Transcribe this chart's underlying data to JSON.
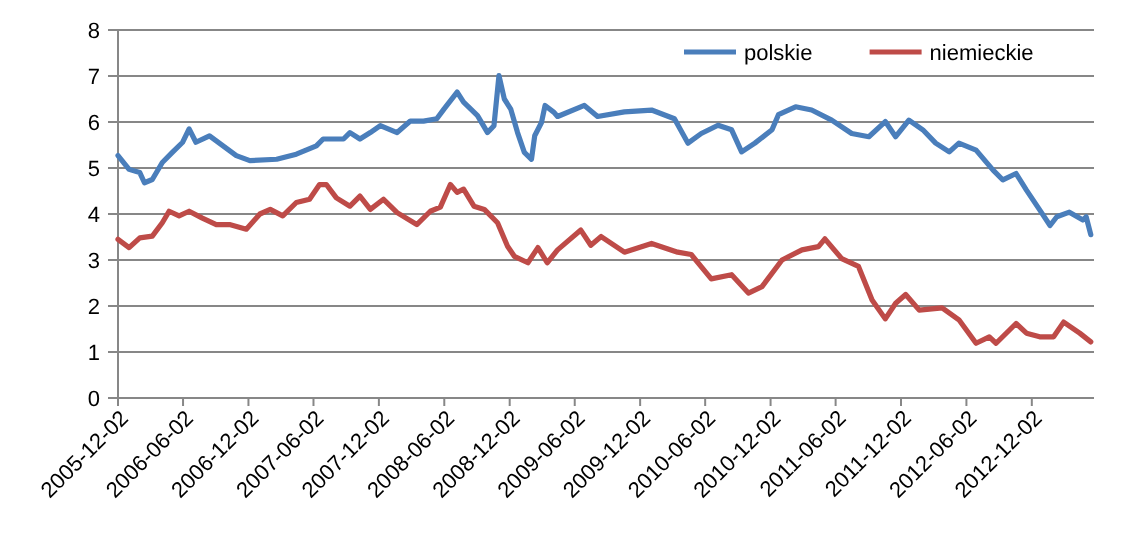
{
  "chart_data": {
    "type": "line",
    "xlim": [
      "2005-12-02",
      "2013-05-25"
    ],
    "ylim": [
      0,
      8
    ],
    "yticks": [
      0,
      1,
      2,
      3,
      4,
      5,
      6,
      7,
      8
    ],
    "xticks": [
      "2005-12-02",
      "2006-06-02",
      "2006-12-02",
      "2007-06-02",
      "2007-12-02",
      "2008-06-02",
      "2008-12-02",
      "2009-06-02",
      "2009-12-02",
      "2010-06-02",
      "2010-12-02",
      "2011-06-02",
      "2011-12-02",
      "2012-06-02",
      "2012-12-02"
    ],
    "grid": "y",
    "legend": "top right",
    "marker": "none",
    "line_style": "solid",
    "series": [
      {
        "name": "polskie",
        "color": "#4a7ebb",
        "x": [
          "2005-12-02",
          "2006-01-02",
          "2006-02-01",
          "2006-02-14",
          "2006-03-08",
          "2006-04-05",
          "2006-05-03",
          "2006-06-01",
          "2006-06-19",
          "2006-07-08",
          "2006-08-15",
          "2006-09-22",
          "2006-10-29",
          "2006-12-06",
          "2007-02-19",
          "2007-04-15",
          "2007-06-10",
          "2007-06-29",
          "2007-08-25",
          "2007-09-12",
          "2007-10-10",
          "2007-11-08",
          "2007-12-06",
          "2008-01-22",
          "2008-02-28",
          "2008-04-05",
          "2008-05-12",
          "2008-06-01",
          "2008-07-08",
          "2008-07-26",
          "2008-09-03",
          "2008-10-01",
          "2008-10-19",
          "2008-11-02",
          "2008-11-17",
          "2008-12-05",
          "2008-12-24",
          "2009-01-12",
          "2009-02-01",
          "2009-02-10",
          "2009-03-01",
          "2009-03-11",
          "2009-04-05",
          "2009-04-15",
          "2009-06-29",
          "2009-08-05",
          "2009-10-19",
          "2010-01-03",
          "2010-03-08",
          "2010-04-15",
          "2010-05-22",
          "2010-07-08",
          "2010-08-15",
          "2010-09-12",
          "2010-10-19",
          "2010-12-06",
          "2010-12-24",
          "2011-02-10",
          "2011-03-27",
          "2011-05-22",
          "2011-07-17",
          "2011-09-03",
          "2011-10-19",
          "2011-11-17",
          "2011-12-24",
          "2012-02-01",
          "2012-03-08",
          "2012-04-15",
          "2012-05-12",
          "2012-06-29",
          "2012-08-15",
          "2012-09-12",
          "2012-10-19",
          "2012-11-17",
          "2012-12-24",
          "2013-01-22",
          "2013-02-10",
          "2013-03-17",
          "2013-04-24",
          "2013-05-03",
          "2013-05-16"
        ],
        "values": [
          5.27,
          4.97,
          4.9,
          4.68,
          4.75,
          5.12,
          5.34,
          5.56,
          5.85,
          5.56,
          5.7,
          5.48,
          5.27,
          5.16,
          5.19,
          5.3,
          5.48,
          5.63,
          5.63,
          5.77,
          5.63,
          5.77,
          5.92,
          5.77,
          6.02,
          6.02,
          6.07,
          6.28,
          6.65,
          6.43,
          6.14,
          5.77,
          5.92,
          7.01,
          6.5,
          6.28,
          5.77,
          5.34,
          5.19,
          5.7,
          5.99,
          6.36,
          6.21,
          6.12,
          6.36,
          6.12,
          6.22,
          6.26,
          6.07,
          5.54,
          5.75,
          5.93,
          5.83,
          5.35,
          5.54,
          5.83,
          6.16,
          6.33,
          6.26,
          6.04,
          5.75,
          5.68,
          6.01,
          5.68,
          6.04,
          5.83,
          5.54,
          5.35,
          5.54,
          5.39,
          4.96,
          4.74,
          4.88,
          4.52,
          4.09,
          3.75,
          3.94,
          4.04,
          3.87,
          3.94,
          3.55
        ]
      },
      {
        "name": "niemieckie",
        "color": "#be4b48",
        "x": [
          "2005-12-02",
          "2006-01-02",
          "2006-02-01",
          "2006-03-08",
          "2006-04-05",
          "2006-04-24",
          "2006-05-22",
          "2006-06-19",
          "2006-07-26",
          "2006-09-03",
          "2006-10-10",
          "2006-11-26",
          "2007-01-03",
          "2007-02-01",
          "2007-03-08",
          "2007-04-15",
          "2007-05-22",
          "2007-06-19",
          "2007-07-08",
          "2007-08-05",
          "2007-09-12",
          "2007-10-10",
          "2007-11-08",
          "2007-12-15",
          "2008-01-22",
          "2008-03-17",
          "2008-04-24",
          "2008-05-22",
          "2008-06-19",
          "2008-07-08",
          "2008-07-26",
          "2008-08-24",
          "2008-09-22",
          "2008-10-29",
          "2008-11-26",
          "2008-12-15",
          "2009-01-22",
          "2009-02-19",
          "2009-03-17",
          "2009-04-15",
          "2009-06-19",
          "2009-07-17",
          "2009-08-15",
          "2009-10-19",
          "2010-01-03",
          "2010-03-17",
          "2010-04-24",
          "2010-06-19",
          "2010-08-15",
          "2010-10-01",
          "2010-11-08",
          "2011-01-03",
          "2011-02-28",
          "2011-04-15",
          "2011-05-03",
          "2011-06-19",
          "2011-08-05",
          "2011-09-12",
          "2011-10-19",
          "2011-11-17",
          "2011-12-15",
          "2012-01-22",
          "2012-03-26",
          "2012-05-12",
          "2012-06-29",
          "2012-08-05",
          "2012-08-24",
          "2012-10-19",
          "2012-11-17",
          "2012-12-24",
          "2013-02-01",
          "2013-03-01",
          "2013-04-15",
          "2013-05-16"
        ],
        "values": [
          3.45,
          3.27,
          3.48,
          3.52,
          3.81,
          4.06,
          3.96,
          4.06,
          3.91,
          3.77,
          3.77,
          3.67,
          4.0,
          4.1,
          3.96,
          4.25,
          4.32,
          4.64,
          4.64,
          4.35,
          4.17,
          4.39,
          4.1,
          4.32,
          4.03,
          3.77,
          4.06,
          4.15,
          4.64,
          4.47,
          4.54,
          4.17,
          4.1,
          3.81,
          3.3,
          3.08,
          2.94,
          3.27,
          2.94,
          3.22,
          3.65,
          3.32,
          3.51,
          3.17,
          3.36,
          3.17,
          3.12,
          2.59,
          2.68,
          2.28,
          2.42,
          3.0,
          3.22,
          3.29,
          3.46,
          3.03,
          2.86,
          2.13,
          1.72,
          2.06,
          2.25,
          1.91,
          1.96,
          1.7,
          1.19,
          1.33,
          1.19,
          1.62,
          1.41,
          1.33,
          1.33,
          1.65,
          1.41,
          1.22
        ]
      }
    ]
  }
}
